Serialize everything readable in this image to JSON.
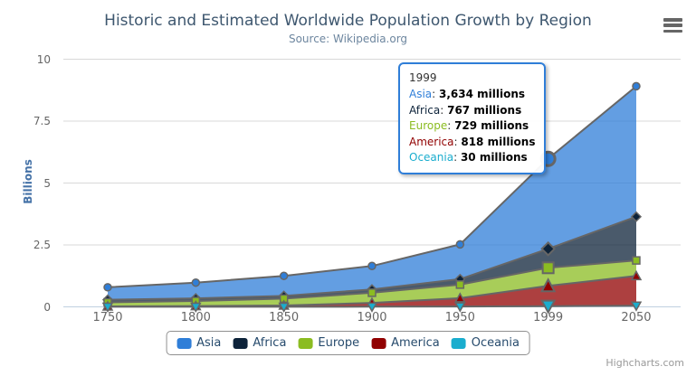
{
  "chart": {
    "title": "Historic and Estimated Worldwide Population Growth by Region",
    "subtitle": "Source: Wikipedia.org",
    "credits": "Highcharts.com"
  },
  "icons": {
    "context_menu": "hamburger"
  },
  "y_axis": {
    "title": "Billions",
    "tick_labels": [
      "0",
      "2.5",
      "5",
      "7.5",
      "10"
    ],
    "tick_values": [
      0,
      2.5,
      5,
      7.5,
      10
    ]
  },
  "x_axis": {
    "categories": [
      "1750",
      "1800",
      "1850",
      "1900",
      "1950",
      "1999",
      "2050"
    ]
  },
  "legend": {
    "items": [
      {
        "label": "Asia",
        "color": "#2f7ed8"
      },
      {
        "label": "Africa",
        "color": "#0d233a"
      },
      {
        "label": "Europe",
        "color": "#8bbc21"
      },
      {
        "label": "America",
        "color": "#910000"
      },
      {
        "label": "Oceania",
        "color": "#1aadce"
      }
    ]
  },
  "tooltip": {
    "header": "1999",
    "category_index": 5,
    "border_color": "#2f7ed8",
    "rows": [
      {
        "name": "Asia",
        "value": "3,634 millions",
        "color": "#2f7ed8"
      },
      {
        "name": "Africa",
        "value": "767 millions",
        "color": "#0d233a"
      },
      {
        "name": "Europe",
        "value": "729 millions",
        "color": "#8bbc21"
      },
      {
        "name": "America",
        "value": "818 millions",
        "color": "#910000"
      },
      {
        "name": "Oceania",
        "value": "30 millions",
        "color": "#1aadce"
      }
    ]
  },
  "chart_data": {
    "type": "area",
    "stacking": "normal",
    "stack_order": "first-series-on-top",
    "title": "Historic and Estimated Worldwide Population Growth by Region",
    "subtitle": "Source: Wikipedia.org",
    "xlabel": "",
    "ylabel": "Billions",
    "unit": "millions",
    "ylim": [
      0,
      10
    ],
    "grid": true,
    "legend_position": "bottom",
    "hover_category_index": 5,
    "line_color": "#666666",
    "fill_opacity": 0.75,
    "grid_color": "#d8d8d8",
    "axis_line_color": "#c0d0e0",
    "categories": [
      "1750",
      "1800",
      "1850",
      "1900",
      "1950",
      "1999",
      "2050"
    ],
    "series": [
      {
        "name": "Asia",
        "color": "#2f7ed8",
        "marker": "circle",
        "values": [
          502,
          635,
          809,
          947,
          1402,
          3634,
          5268
        ]
      },
      {
        "name": "Africa",
        "color": "#0d233a",
        "marker": "diamond",
        "values": [
          106,
          107,
          111,
          133,
          221,
          767,
          1766
        ]
      },
      {
        "name": "Europe",
        "color": "#8bbc21",
        "marker": "square",
        "values": [
          163,
          203,
          276,
          408,
          547,
          729,
          628
        ]
      },
      {
        "name": "America",
        "color": "#910000",
        "marker": "triangle",
        "values": [
          18,
          31,
          54,
          156,
          339,
          818,
          1201
        ]
      },
      {
        "name": "Oceania",
        "color": "#1aadce",
        "marker": "triangle-down",
        "values": [
          2,
          2,
          2,
          6,
          13,
          30,
          46
        ]
      }
    ]
  }
}
